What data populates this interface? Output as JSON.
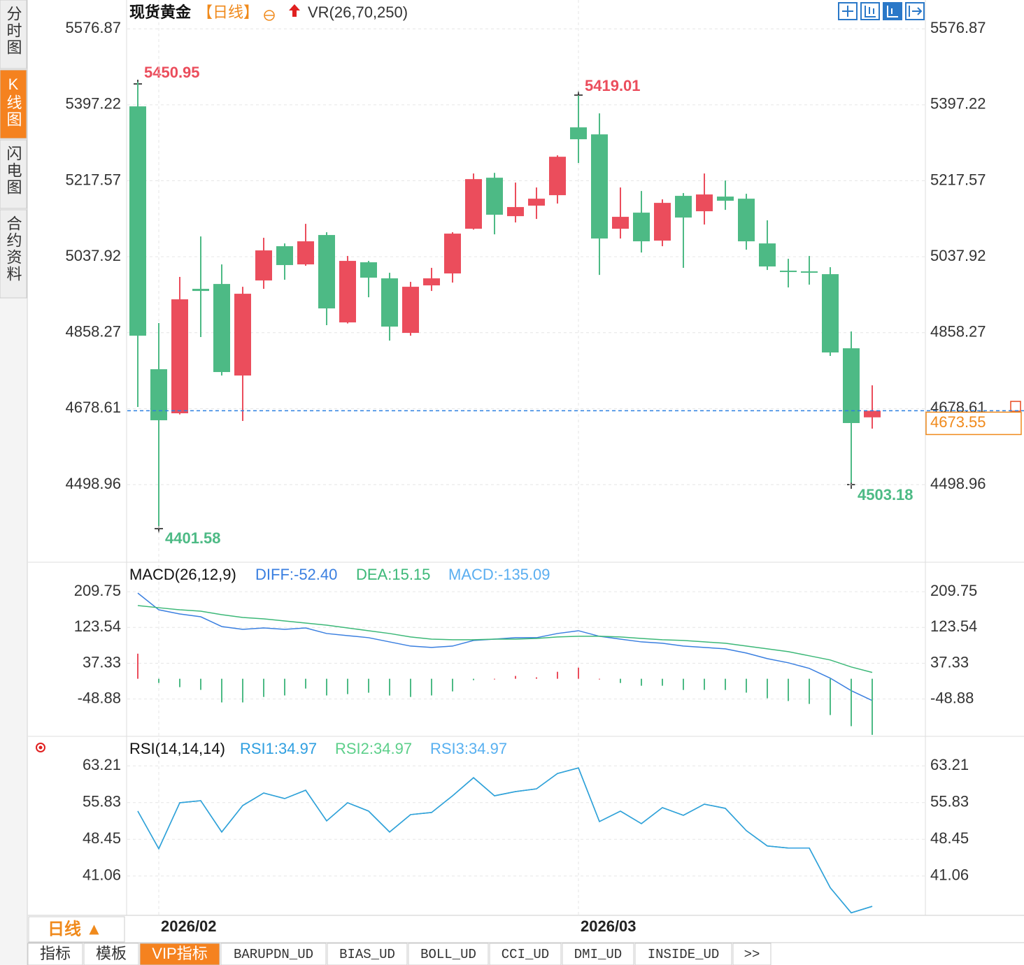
{
  "ui": {
    "sidebar": [
      "分时图",
      "K线图",
      "闪电图",
      "合约资料"
    ],
    "period": "日线 ▲",
    "tabs": [
      "指标",
      "模板",
      "VIP指标",
      "BARUPDN_UD",
      "BIAS_UD",
      "BOLL_UD",
      "CCI_UD",
      "DMI_UD",
      "INSIDE_UD",
      ">>"
    ]
  },
  "chart_data": [
    {
      "type": "candlestick",
      "title": "现货黄金",
      "period": "【日线】",
      "indicator": "VR(26,70,250)",
      "categories": [
        null,
        "2026/02",
        null,
        null,
        null,
        null,
        null,
        null,
        null,
        null,
        null,
        null,
        null,
        null,
        null,
        null,
        null,
        null,
        null,
        null,
        null,
        "2026/03",
        null,
        null,
        null,
        null,
        null,
        null,
        null,
        null,
        null,
        null,
        null,
        null,
        null,
        null
      ],
      "open": [
        5393.4,
        4771.8,
        4667.6,
        4961.9,
        4973.4,
        4756.9,
        4981.7,
        5062.7,
        5019.7,
        5089.2,
        4882.5,
        5024.7,
        4986.7,
        4857.7,
        4970.1,
        4998.3,
        5104.0,
        5224.7,
        5133.8,
        5158.6,
        5183.4,
        5343.8,
        5327.2,
        5104.0,
        5142.1,
        5075.9,
        5181.8,
        5145.4,
        5180.1,
        5175.1,
        5069.3,
        5004.9,
        5003.2,
        4996.6,
        4821.3,
        4658.0
      ],
      "high": [
        5450.95,
        4880.9,
        4990.0,
        5085.9,
        5019.7,
        4966.8,
        5082.6,
        5069.3,
        5115.6,
        5095.8,
        5039.6,
        5028.0,
        4999.9,
        4978.4,
        5011.5,
        5095.8,
        5234.7,
        5236.2,
        5213.2,
        5201.6,
        5277.6,
        5419.01,
        5376.8,
        5201.6,
        5193.3,
        5173.5,
        5188.4,
        5234.7,
        5218.1,
        5186.7,
        5123.9,
        5032.9,
        5039.6,
        5013.1,
        4861.0,
        4733.7
      ],
      "low": [
        4682.5,
        4401.58,
        4665.0,
        4847.8,
        4756.9,
        4649.4,
        4961.9,
        4983.4,
        5016.4,
        4875.9,
        4880.0,
        4942.0,
        4839.5,
        4851.1,
        4956.9,
        4976.7,
        5102.0,
        5090.8,
        5118.9,
        5127.2,
        5163.6,
        5259.5,
        4994.9,
        5080.9,
        5047.8,
        5062.7,
        5011.5,
        5114.0,
        5148.7,
        5054.5,
        5006.5,
        4965.2,
        4971.8,
        4803.2,
        4503.18,
        4631.3
      ],
      "close": [
        4851.1,
        4651.1,
        4937.1,
        4956.9,
        4765.1,
        4950.3,
        5052.8,
        5018.1,
        5074.3,
        4915.6,
        5028.0,
        4988.3,
        4872.6,
        4966.8,
        4986.7,
        5092.5,
        5221.4,
        5137.1,
        5155.3,
        5175.1,
        5274.3,
        5315.7,
        5080.9,
        5132.2,
        5074.3,
        5165.2,
        5130.5,
        5185.1,
        5170.2,
        5074.3,
        5014.8,
        5001.6,
        4999.9,
        4811.4,
        4644.5,
        4673.55
      ],
      "up_color": "#eb4d5c",
      "down_color": "#4dba85",
      "last_color": "#f08a1c",
      "ylim": [
        4317,
        5645
      ],
      "yticks": [
        4498.96,
        4678.61,
        4858.27,
        5037.92,
        5217.57,
        5397.22,
        5576.87
      ],
      "grid": true
    },
    {
      "type": "macd",
      "title": "MACD(26,12,9)",
      "up_color": "#eb4d5c",
      "down_color": "#4dba85",
      "series": [
        {
          "name": "DIFF:-52.40",
          "color": "#3a7fe0",
          "values": [
            206.4,
            166.1,
            156.0,
            149.3,
            125.8,
            119.1,
            122.4,
            119.1,
            122.4,
            109.0,
            103.9,
            98.9,
            88.8,
            78.7,
            75.4,
            78.7,
            92.2,
            95.5,
            98.9,
            98.9,
            109.0,
            115.7,
            102.3,
            95.5,
            88.8,
            85.5,
            78.7,
            75.4,
            72.0,
            62.0,
            48.5,
            38.5,
            25.0,
            1.5,
            -28.7,
            -52.4
          ]
        },
        {
          "name": "DEA:15.15",
          "color": "#3cb878",
          "values": [
            176.2,
            171.1,
            166.1,
            162.7,
            154.3,
            147.6,
            144.3,
            139.2,
            134.2,
            129.1,
            122.4,
            115.7,
            109.0,
            100.6,
            95.5,
            93.9,
            93.9,
            95.5,
            95.5,
            97.2,
            100.6,
            102.3,
            102.3,
            100.6,
            97.2,
            93.9,
            92.2,
            88.8,
            85.5,
            78.7,
            72.0,
            65.3,
            55.3,
            45.2,
            28.4,
            15.15
          ]
        },
        {
          "name": "MACD:-135.09",
          "color": "#5aaef0",
          "kind": "bar",
          "values": [
            60.4,
            -10,
            -20.2,
            -26.8,
            -57,
            -57,
            -43.8,
            -40.2,
            -23.6,
            -40.2,
            -37,
            -33.6,
            -40.4,
            -43.8,
            -40.2,
            -30.4,
            -3.4,
            0,
            6.8,
            3.4,
            16.8,
            26.8,
            0,
            -10.2,
            -16.8,
            -16.8,
            -27,
            -26.8,
            -27,
            -33.4,
            -47,
            -53.6,
            -60.6,
            -87.4,
            -114.2,
            -135.09
          ]
        }
      ],
      "ylim": [
        -137,
        279
      ],
      "yticks": [
        -48.88,
        37.33,
        123.54,
        209.75
      ],
      "grid": true
    },
    {
      "type": "line",
      "title": "RSI(14,14,14)",
      "series": [
        {
          "name": "RSI1:34.97",
          "color": "#2f9fe0",
          "values": [
            54.11,
            46.55,
            55.79,
            56.21,
            49.91,
            55.23,
            57.75,
            56.63,
            58.31,
            52.15,
            55.79,
            54.11,
            49.91,
            53.41,
            53.83,
            57.19,
            60.83,
            57.19,
            58.03,
            58.59,
            61.67,
            62.79,
            52.01,
            54.11,
            51.59,
            54.81,
            53.27,
            55.51,
            54.67,
            50.19,
            47.11,
            46.69,
            46.69,
            38.71,
            33.67,
            34.97
          ]
        },
        {
          "name": "RSI2:34.97",
          "color": "#5ccf8a",
          "values": [
            54.11,
            46.55,
            55.79,
            56.21,
            49.91,
            55.23,
            57.75,
            56.63,
            58.31,
            52.15,
            55.79,
            54.11,
            49.91,
            53.41,
            53.83,
            57.19,
            60.83,
            57.19,
            58.03,
            58.59,
            61.67,
            62.79,
            52.01,
            54.11,
            51.59,
            54.81,
            53.27,
            55.51,
            54.67,
            50.19,
            47.11,
            46.69,
            46.69,
            38.71,
            33.67,
            34.97
          ]
        },
        {
          "name": "RSI3:34.97",
          "color": "#58b0f0",
          "values": [
            54.11,
            46.55,
            55.79,
            56.21,
            49.91,
            55.23,
            57.75,
            56.63,
            58.31,
            52.15,
            55.79,
            54.11,
            49.91,
            53.41,
            53.83,
            57.19,
            60.83,
            57.19,
            58.03,
            58.59,
            61.67,
            62.79,
            52.01,
            54.11,
            51.59,
            54.81,
            53.27,
            55.51,
            54.67,
            50.19,
            47.11,
            46.69,
            46.69,
            38.71,
            33.67,
            34.97
          ]
        }
      ],
      "ylim": [
        33.3,
        69
      ],
      "yticks": [
        41.06,
        48.45,
        55.83,
        63.21
      ],
      "grid": true
    }
  ]
}
